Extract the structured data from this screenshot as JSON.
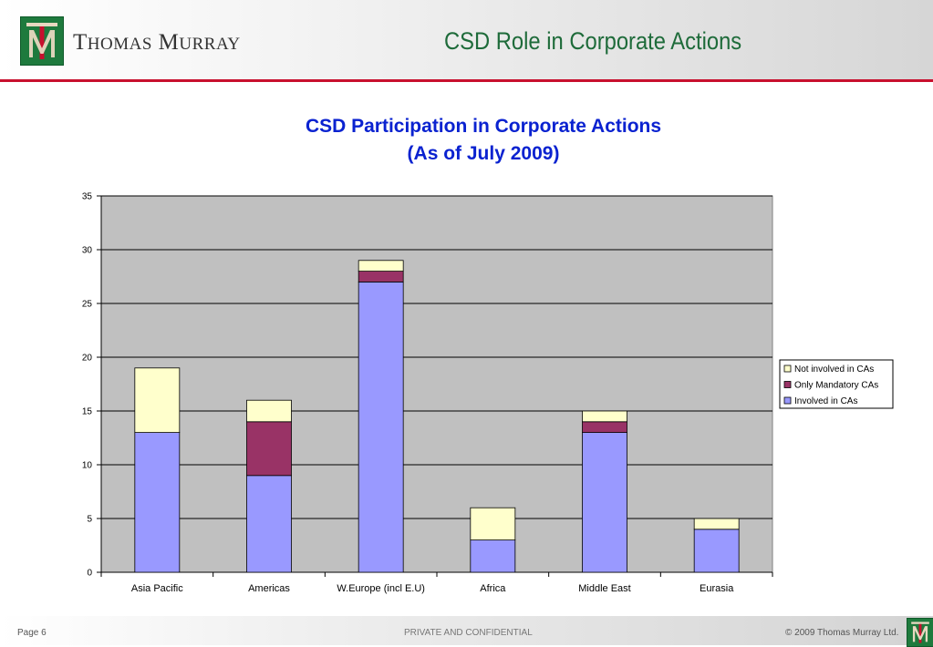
{
  "header": {
    "brand_initial_1": "T",
    "brand_rest_1": "HOMAS",
    "brand_initial_2": "M",
    "brand_rest_2": "URRAY",
    "slide_title": "CSD Role in Corporate Actions"
  },
  "footer": {
    "page": "Page 6",
    "confidential": "PRIVATE AND CONFIDENTIAL",
    "copyright": "© 2009 Thomas Murray Ltd."
  },
  "colors": {
    "brand_green": "#1e7a3d",
    "accent_red": "#c8102e",
    "title_blue": "#0a22d0",
    "plot_bg": "#c0c0c0"
  },
  "chart_data": {
    "type": "bar",
    "stacked": true,
    "title_line1": "CSD Participation in Corporate Actions",
    "title_line2": "(As of July 2009)",
    "xlabel": "",
    "ylabel": "",
    "categories": [
      "Asia Pacific",
      "Americas",
      "W.Europe (incl E.U)",
      "Africa",
      "Middle East",
      "Eurasia"
    ],
    "series": [
      {
        "name": "Involved in CAs",
        "color": "#9999ff",
        "values": [
          13,
          9,
          27,
          3,
          13,
          4
        ]
      },
      {
        "name": "Only Mandatory CAs",
        "color": "#993366",
        "values": [
          0,
          5,
          1,
          0,
          1,
          0
        ]
      },
      {
        "name": "Not involved in CAs",
        "color": "#ffffcc",
        "values": [
          6,
          2,
          1,
          3,
          1,
          1
        ]
      }
    ],
    "ylim": [
      0,
      35
    ],
    "yticks": [
      "0",
      "5",
      "10",
      "15",
      "20",
      "25",
      "30",
      "35"
    ],
    "grid": true,
    "legend_position": "right",
    "legend_order": [
      "Not involved in CAs",
      "Only Mandatory CAs",
      "Involved in CAs"
    ]
  }
}
